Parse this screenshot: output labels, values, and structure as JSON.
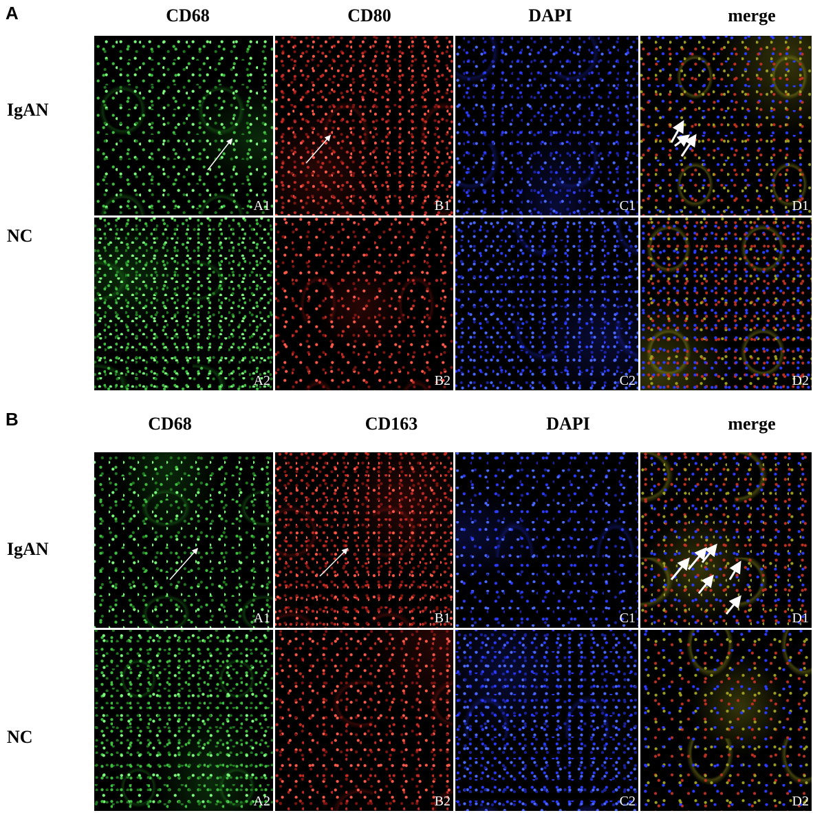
{
  "panels": [
    {
      "label": "A",
      "columns": [
        "CD68",
        "CD80",
        "DAPI",
        "merge"
      ],
      "rows": [
        {
          "label": "IgAN",
          "tiles": [
            "A1",
            "B1",
            "C1",
            "D1"
          ]
        },
        {
          "label": "NC",
          "tiles": [
            "A2",
            "B2",
            "C2",
            "D2"
          ]
        }
      ]
    },
    {
      "label": "B",
      "columns": [
        "CD68",
        "CD163",
        "DAPI",
        "merge"
      ],
      "rows": [
        {
          "label": "IgAN",
          "tiles": [
            "A1",
            "B1",
            "C1",
            "D1"
          ]
        },
        {
          "label": "NC",
          "tiles": [
            "A2",
            "B2",
            "C2",
            "D2"
          ]
        }
      ]
    }
  ]
}
